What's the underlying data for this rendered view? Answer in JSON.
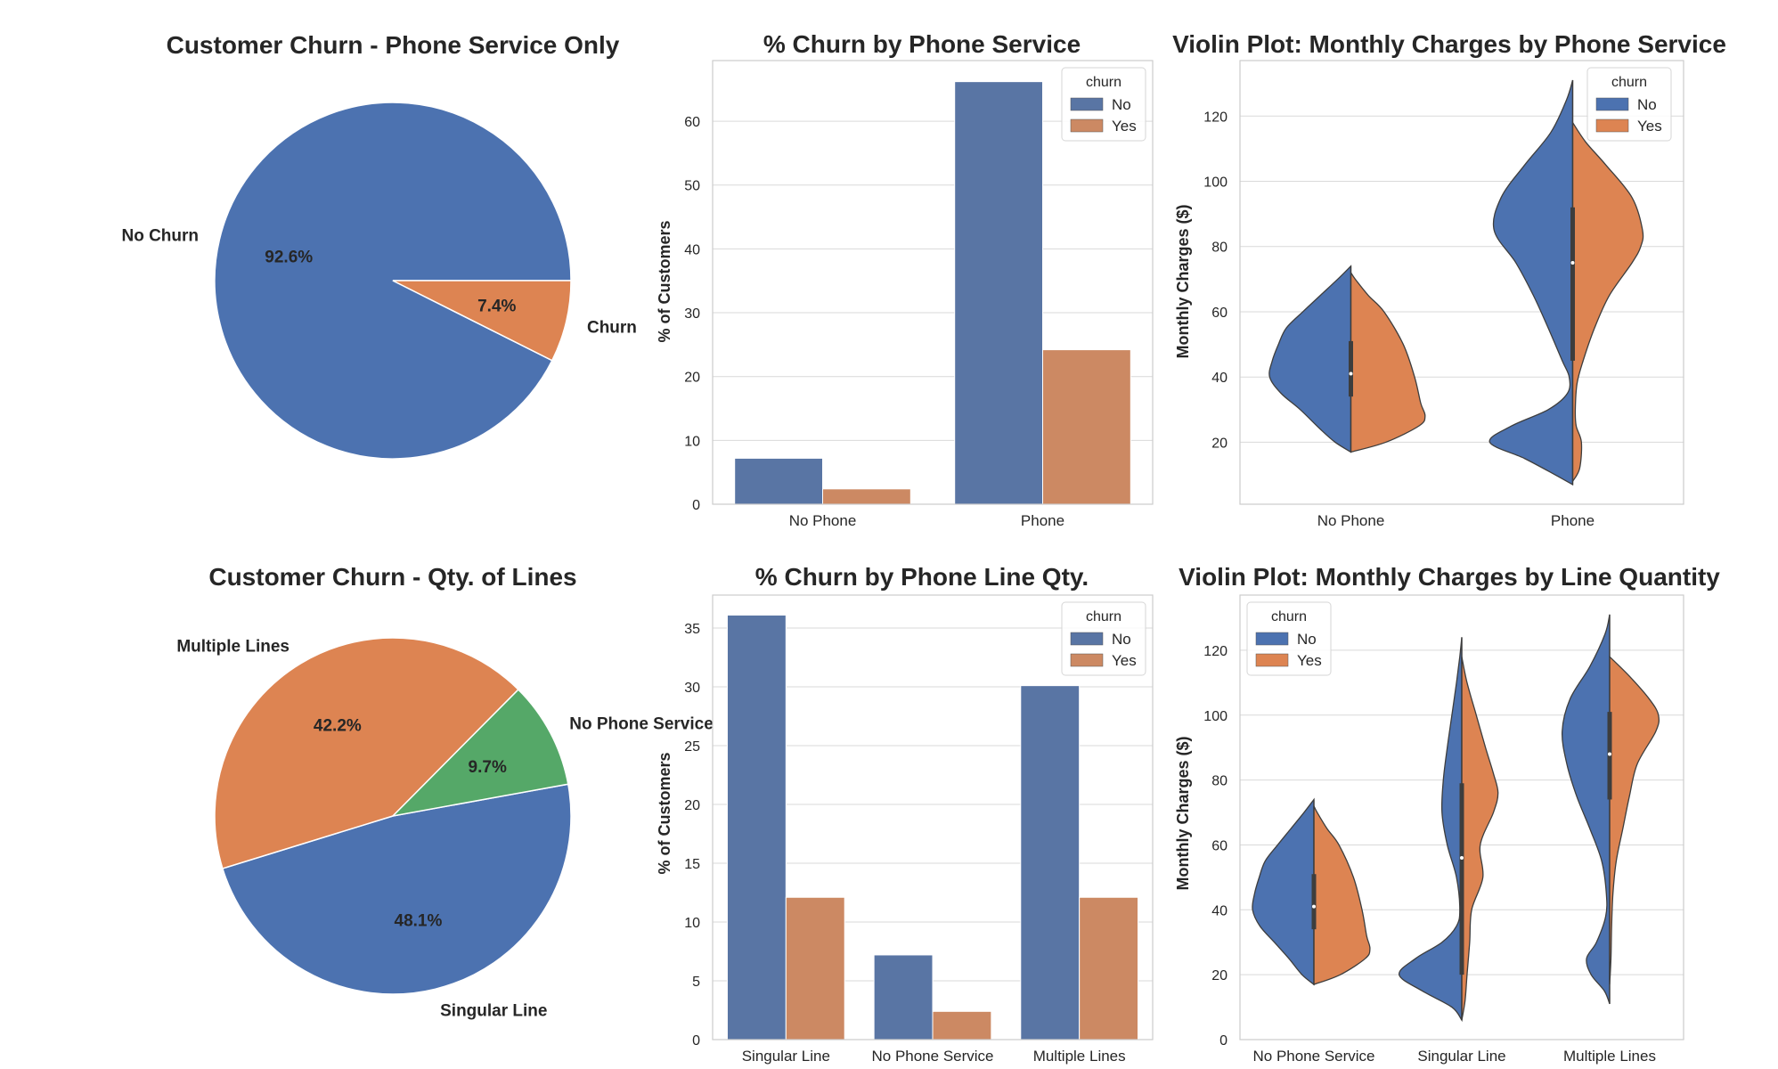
{
  "colors": {
    "blue": "#4c72b0",
    "orange": "#dd8452",
    "green": "#55a868",
    "bar_blue": "#5975a4",
    "bar_orange": "#cc8963"
  },
  "chart_data": [
    {
      "id": "pie1",
      "type": "pie",
      "title": "Customer Churn - Phone Service Only",
      "slices": [
        {
          "label": "No Churn",
          "pct_label": "92.6%",
          "value": 92.6,
          "color": "#4c72b0"
        },
        {
          "label": "Churn",
          "pct_label": "7.4%",
          "value": 7.4,
          "color": "#dd8452"
        }
      ]
    },
    {
      "id": "bar1",
      "type": "bar",
      "title": "% Churn by Phone Service",
      "xlabel": "",
      "ylabel": "% of Customers",
      "categories": [
        "No Phone",
        "Phone"
      ],
      "ylim": [
        0,
        69.5
      ],
      "yticks": [
        0,
        10,
        20,
        30,
        40,
        50,
        60
      ],
      "legend": {
        "title": "churn",
        "position": "top-right"
      },
      "series": [
        {
          "name": "No",
          "values": [
            7.2,
            66.2
          ],
          "color": "#5975a4"
        },
        {
          "name": "Yes",
          "values": [
            2.4,
            24.2
          ],
          "color": "#cc8963"
        }
      ]
    },
    {
      "id": "violin1",
      "type": "violin",
      "title": "Violin Plot: Monthly Charges by Phone Service",
      "xlabel": "",
      "ylabel": "Monthly Charges ($)",
      "categories": [
        "No Phone",
        "Phone"
      ],
      "ylim": [
        1,
        137
      ],
      "yticks": [
        20,
        40,
        60,
        80,
        100,
        120
      ],
      "legend": {
        "title": "churn",
        "position": "top-right"
      },
      "series": [
        {
          "name": "No",
          "color": "#4c72b0"
        },
        {
          "name": "Yes",
          "color": "#dd8452"
        }
      ],
      "halves": [
        {
          "category": 0,
          "side": "No",
          "min": 17,
          "max": 74,
          "q1": 34,
          "median": 41,
          "q3": 51,
          "profile": [
            [
              17,
              0.0
            ],
            [
              20,
              0.18
            ],
            [
              24,
              0.35
            ],
            [
              30,
              0.58
            ],
            [
              35,
              0.8
            ],
            [
              40,
              0.93
            ],
            [
              45,
              0.9
            ],
            [
              50,
              0.83
            ],
            [
              55,
              0.74
            ],
            [
              60,
              0.55
            ],
            [
              65,
              0.35
            ],
            [
              70,
              0.15
            ],
            [
              74,
              0.0
            ]
          ]
        },
        {
          "category": 0,
          "side": "Yes",
          "min": 17,
          "max": 72,
          "q1": 34,
          "median": 41,
          "q3": 51,
          "profile": [
            [
              17,
              0.0
            ],
            [
              20,
              0.4
            ],
            [
              25,
              0.78
            ],
            [
              28,
              0.85
            ],
            [
              32,
              0.8
            ],
            [
              40,
              0.73
            ],
            [
              50,
              0.6
            ],
            [
              60,
              0.38
            ],
            [
              65,
              0.2
            ],
            [
              70,
              0.05
            ],
            [
              72,
              0.0
            ]
          ]
        },
        {
          "category": 1,
          "side": "No",
          "min": 7,
          "max": 131,
          "q1": 45,
          "median": 75,
          "q3": 92,
          "profile": [
            [
              7,
              0.0
            ],
            [
              10,
              0.2
            ],
            [
              15,
              0.55
            ],
            [
              20,
              0.95
            ],
            [
              25,
              0.7
            ],
            [
              30,
              0.28
            ],
            [
              35,
              0.06
            ],
            [
              40,
              0.04
            ],
            [
              45,
              0.12
            ],
            [
              55,
              0.28
            ],
            [
              65,
              0.45
            ],
            [
              75,
              0.65
            ],
            [
              85,
              0.9
            ],
            [
              95,
              0.82
            ],
            [
              105,
              0.55
            ],
            [
              115,
              0.25
            ],
            [
              125,
              0.07
            ],
            [
              131,
              0.0
            ]
          ]
        },
        {
          "category": 1,
          "side": "Yes",
          "min": 8,
          "max": 118,
          "q1": 45,
          "median": 75,
          "q3": 92,
          "profile": [
            [
              8,
              0.0
            ],
            [
              12,
              0.08
            ],
            [
              20,
              0.1
            ],
            [
              25,
              0.04
            ],
            [
              30,
              0.03
            ],
            [
              38,
              0.05
            ],
            [
              45,
              0.12
            ],
            [
              55,
              0.25
            ],
            [
              65,
              0.42
            ],
            [
              75,
              0.68
            ],
            [
              80,
              0.78
            ],
            [
              85,
              0.8
            ],
            [
              95,
              0.68
            ],
            [
              105,
              0.38
            ],
            [
              112,
              0.15
            ],
            [
              118,
              0.0
            ]
          ]
        }
      ]
    },
    {
      "id": "pie2",
      "type": "pie",
      "title": "Customer Churn - Qty. of Lines",
      "slices": [
        {
          "label": "Singular Line",
          "pct_label": "48.1%",
          "value": 48.1,
          "color": "#4c72b0"
        },
        {
          "label": "Multiple Lines",
          "pct_label": "42.2%",
          "value": 42.2,
          "color": "#dd8452"
        },
        {
          "label": "No Phone Service",
          "pct_label": "9.7%",
          "value": 9.7,
          "color": "#55a868"
        }
      ]
    },
    {
      "id": "bar2",
      "type": "bar",
      "title": "% Churn by Phone Line Qty.",
      "xlabel": "",
      "ylabel": "% of Customers",
      "categories": [
        "Singular Line",
        "No Phone Service",
        "Multiple Lines"
      ],
      "ylim": [
        0,
        37.8
      ],
      "yticks": [
        0,
        5,
        10,
        15,
        20,
        25,
        30,
        35
      ],
      "legend": {
        "title": "churn",
        "position": "top-right"
      },
      "series": [
        {
          "name": "No",
          "values": [
            36.1,
            7.2,
            30.1
          ],
          "color": "#5975a4"
        },
        {
          "name": "Yes",
          "values": [
            12.1,
            2.4,
            12.1
          ],
          "color": "#cc8963"
        }
      ]
    },
    {
      "id": "violin2",
      "type": "violin",
      "title": "Violin Plot: Monthly Charges by Line Quantity",
      "xlabel": "",
      "ylabel": "Monthly Charges ($)",
      "categories": [
        "No Phone Service",
        "Singular Line",
        "Multiple Lines"
      ],
      "ylim": [
        0,
        137
      ],
      "yticks": [
        0,
        20,
        40,
        60,
        80,
        100,
        120
      ],
      "legend": {
        "title": "churn",
        "position": "top-left"
      },
      "series": [
        {
          "name": "No",
          "color": "#4c72b0"
        },
        {
          "name": "Yes",
          "color": "#dd8452"
        }
      ],
      "halves": [
        {
          "category": 0,
          "side": "No",
          "min": 17,
          "max": 74,
          "q1": 34,
          "median": 41,
          "q3": 51,
          "profile": [
            [
              17,
              0.0
            ],
            [
              20,
              0.18
            ],
            [
              25,
              0.38
            ],
            [
              30,
              0.6
            ],
            [
              35,
              0.82
            ],
            [
              40,
              0.93
            ],
            [
              45,
              0.9
            ],
            [
              50,
              0.83
            ],
            [
              55,
              0.74
            ],
            [
              60,
              0.55
            ],
            [
              65,
              0.35
            ],
            [
              70,
              0.15
            ],
            [
              74,
              0.0
            ]
          ]
        },
        {
          "category": 0,
          "side": "Yes",
          "min": 17,
          "max": 72,
          "q1": 34,
          "median": 41,
          "q3": 51,
          "profile": [
            [
              17,
              0.0
            ],
            [
              20,
              0.4
            ],
            [
              25,
              0.78
            ],
            [
              28,
              0.85
            ],
            [
              32,
              0.8
            ],
            [
              40,
              0.73
            ],
            [
              50,
              0.6
            ],
            [
              60,
              0.38
            ],
            [
              65,
              0.2
            ],
            [
              70,
              0.05
            ],
            [
              72,
              0.0
            ]
          ]
        },
        {
          "category": 1,
          "side": "No",
          "min": 6,
          "max": 124,
          "q1": 20,
          "median": 56,
          "q3": 79,
          "profile": [
            [
              6,
              0.0
            ],
            [
              10,
              0.15
            ],
            [
              15,
              0.6
            ],
            [
              20,
              0.95
            ],
            [
              25,
              0.7
            ],
            [
              30,
              0.3
            ],
            [
              35,
              0.08
            ],
            [
              40,
              0.03
            ],
            [
              50,
              0.08
            ],
            [
              60,
              0.22
            ],
            [
              70,
              0.3
            ],
            [
              80,
              0.28
            ],
            [
              90,
              0.22
            ],
            [
              100,
              0.15
            ],
            [
              110,
              0.08
            ],
            [
              118,
              0.03
            ],
            [
              124,
              0.0
            ]
          ]
        },
        {
          "category": 1,
          "side": "Yes",
          "min": 6,
          "max": 118,
          "q1": 20,
          "median": 56,
          "q3": 79,
          "profile": [
            [
              6,
              0.0
            ],
            [
              12,
              0.05
            ],
            [
              20,
              0.08
            ],
            [
              30,
              0.12
            ],
            [
              40,
              0.15
            ],
            [
              50,
              0.32
            ],
            [
              60,
              0.28
            ],
            [
              70,
              0.48
            ],
            [
              76,
              0.55
            ],
            [
              82,
              0.48
            ],
            [
              90,
              0.36
            ],
            [
              100,
              0.22
            ],
            [
              110,
              0.08
            ],
            [
              118,
              0.0
            ]
          ]
        },
        {
          "category": 2,
          "side": "No",
          "min": 11,
          "max": 131,
          "q1": 74,
          "median": 88,
          "q3": 101,
          "profile": [
            [
              11,
              0.0
            ],
            [
              15,
              0.08
            ],
            [
              20,
              0.28
            ],
            [
              25,
              0.35
            ],
            [
              30,
              0.2
            ],
            [
              38,
              0.06
            ],
            [
              45,
              0.05
            ],
            [
              55,
              0.12
            ],
            [
              65,
              0.3
            ],
            [
              75,
              0.5
            ],
            [
              85,
              0.65
            ],
            [
              95,
              0.72
            ],
            [
              105,
              0.6
            ],
            [
              115,
              0.3
            ],
            [
              125,
              0.07
            ],
            [
              131,
              0.0
            ]
          ]
        },
        {
          "category": 2,
          "side": "Yes",
          "min": 17,
          "max": 118,
          "q1": 74,
          "median": 88,
          "q3": 101,
          "profile": [
            [
              17,
              0.0
            ],
            [
              25,
              0.02
            ],
            [
              35,
              0.03
            ],
            [
              45,
              0.05
            ],
            [
              55,
              0.1
            ],
            [
              65,
              0.2
            ],
            [
              75,
              0.3
            ],
            [
              85,
              0.42
            ],
            [
              95,
              0.7
            ],
            [
              100,
              0.74
            ],
            [
              105,
              0.6
            ],
            [
              112,
              0.3
            ],
            [
              118,
              0.0
            ]
          ]
        }
      ]
    }
  ]
}
